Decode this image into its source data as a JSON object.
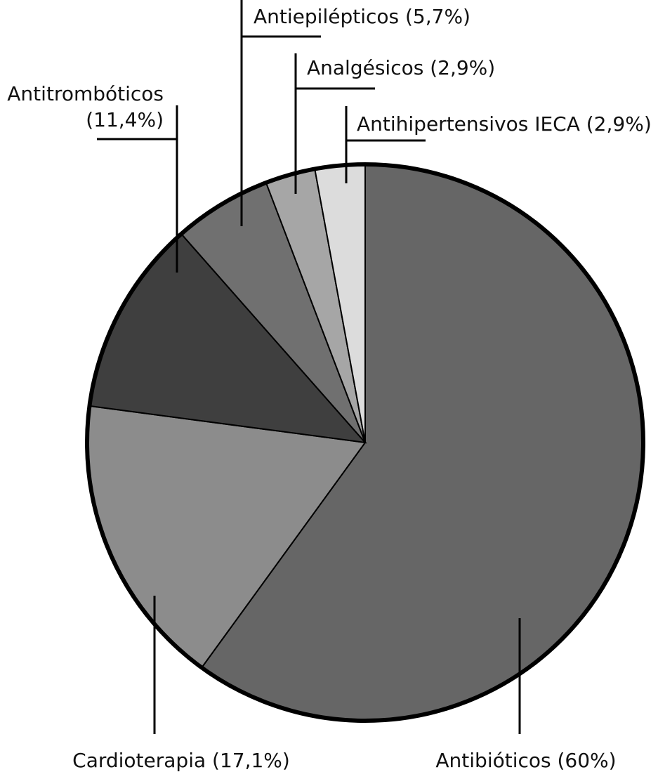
{
  "chart_data": {
    "type": "pie",
    "title": "",
    "start": "top",
    "direction": "clockwise",
    "slices": [
      {
        "key": "antibioticos",
        "label": "Antibióticos (60%)",
        "value": 60,
        "color": "#666666"
      },
      {
        "key": "cardioterapia",
        "label": "Cardioterapia (17,1%)",
        "value": 17.1,
        "color": "#8c8c8c"
      },
      {
        "key": "antitromboticos",
        "label_lines": [
          "Antitrombóticos",
          "(11,4%)"
        ],
        "value": 11.4,
        "color": "#3f3f3f"
      },
      {
        "key": "antiepilepticos",
        "label": "Antiepilépticos (5,7%)",
        "value": 5.7,
        "color": "#707070"
      },
      {
        "key": "analgesicos",
        "label": "Analgésicos (2,9%)",
        "value": 2.9,
        "color": "#a6a6a6"
      },
      {
        "key": "antihipertensivos_ieca",
        "label": "Antihipertensivos IECA (2,9%)",
        "value": 2.9,
        "color": "#dcdcdc"
      }
    ]
  }
}
